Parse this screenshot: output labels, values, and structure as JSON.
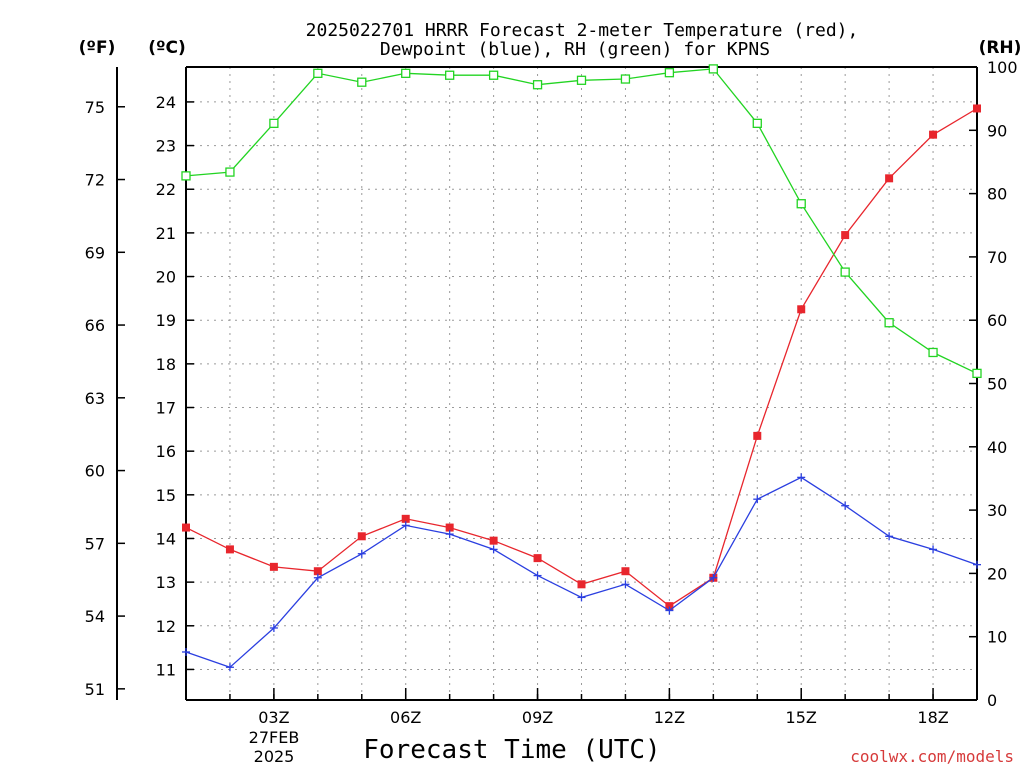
{
  "title": {
    "line1": "2025022701 HRRR Forecast 2-meter Temperature (red),",
    "line2": "Dewpoint (blue), RH (green) for KPNS"
  },
  "units": {
    "fahrenheit": "(ºF)",
    "celsius": "(ºC)",
    "rh": "(RH)"
  },
  "x_axis": {
    "title": "Forecast Time (UTC)",
    "tick_labels": [
      "03Z",
      "06Z",
      "09Z",
      "12Z",
      "15Z",
      "18Z"
    ],
    "tick_hours": [
      3,
      6,
      9,
      12,
      15,
      18
    ],
    "date_line1": "27FEB",
    "date_line2": "2025",
    "range_hours": [
      1,
      19
    ]
  },
  "credit": "coolwx.com/models",
  "colors": {
    "temperature": "#e8262d",
    "dewpoint": "#2b3fe0",
    "rh": "#22d422"
  },
  "chart_data": {
    "type": "line",
    "title": "2025022701 HRRR Forecast 2-meter Temperature (red), Dewpoint (blue), RH (green) for KPNS",
    "xlabel": "Forecast Time (UTC)",
    "x_hours": [
      1,
      2,
      3,
      4,
      5,
      6,
      7,
      8,
      9,
      10,
      11,
      12,
      13,
      14,
      15,
      16,
      17,
      18,
      19
    ],
    "series": [
      {
        "name": "Temperature (red)",
        "axis": "celsius",
        "marker": "filled-square",
        "values": [
          14.25,
          13.75,
          13.35,
          13.25,
          14.05,
          14.45,
          14.25,
          13.95,
          13.55,
          12.95,
          13.25,
          12.45,
          13.1,
          16.35,
          19.25,
          20.95,
          22.25,
          23.25,
          23.85
        ]
      },
      {
        "name": "Dewpoint (blue)",
        "axis": "celsius",
        "marker": "plus",
        "values": [
          11.4,
          11.05,
          11.95,
          13.1,
          13.65,
          14.3,
          14.1,
          13.75,
          13.15,
          12.65,
          12.95,
          12.35,
          13.1,
          14.9,
          15.4,
          14.75,
          14.05,
          13.75,
          13.4
        ]
      },
      {
        "name": "RH (green)",
        "axis": "rh",
        "marker": "open-square",
        "values": [
          82.8,
          83.4,
          91.1,
          99.0,
          97.6,
          99.0,
          98.7,
          98.7,
          97.2,
          97.9,
          98.1,
          99.1,
          99.7,
          91.1,
          78.4,
          67.6,
          59.6,
          54.9,
          51.6
        ]
      }
    ],
    "celsius_axis": {
      "ylim": [
        10.3,
        24.8
      ],
      "ticks": [
        11,
        12,
        13,
        14,
        15,
        16,
        17,
        18,
        19,
        20,
        21,
        22,
        23,
        24
      ]
    },
    "fahrenheit_axis": {
      "ticks": [
        51,
        54,
        57,
        60,
        63,
        66,
        69,
        72,
        75
      ]
    },
    "rh_axis": {
      "ylim": [
        0,
        100
      ],
      "ticks": [
        0,
        10,
        20,
        30,
        40,
        50,
        60,
        70,
        80,
        90,
        100
      ]
    },
    "grid": true
  }
}
